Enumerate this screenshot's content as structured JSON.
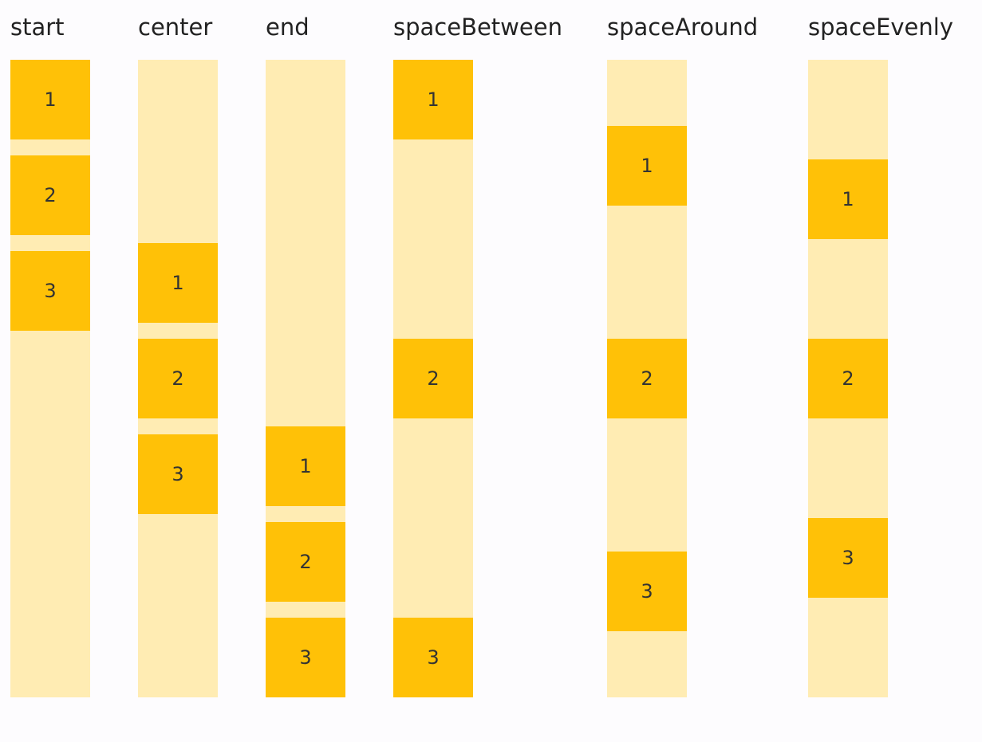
{
  "columns": [
    {
      "label": "start",
      "items": [
        "1",
        "2",
        "3"
      ]
    },
    {
      "label": "center",
      "items": [
        "1",
        "2",
        "3"
      ]
    },
    {
      "label": "end",
      "items": [
        "1",
        "2",
        "3"
      ]
    },
    {
      "label": "spaceBetween",
      "items": [
        "1",
        "2",
        "3"
      ]
    },
    {
      "label": "spaceAround",
      "items": [
        "1",
        "2",
        "3"
      ]
    },
    {
      "label": "spaceEvenly",
      "items": [
        "1",
        "2",
        "3"
      ]
    }
  ]
}
